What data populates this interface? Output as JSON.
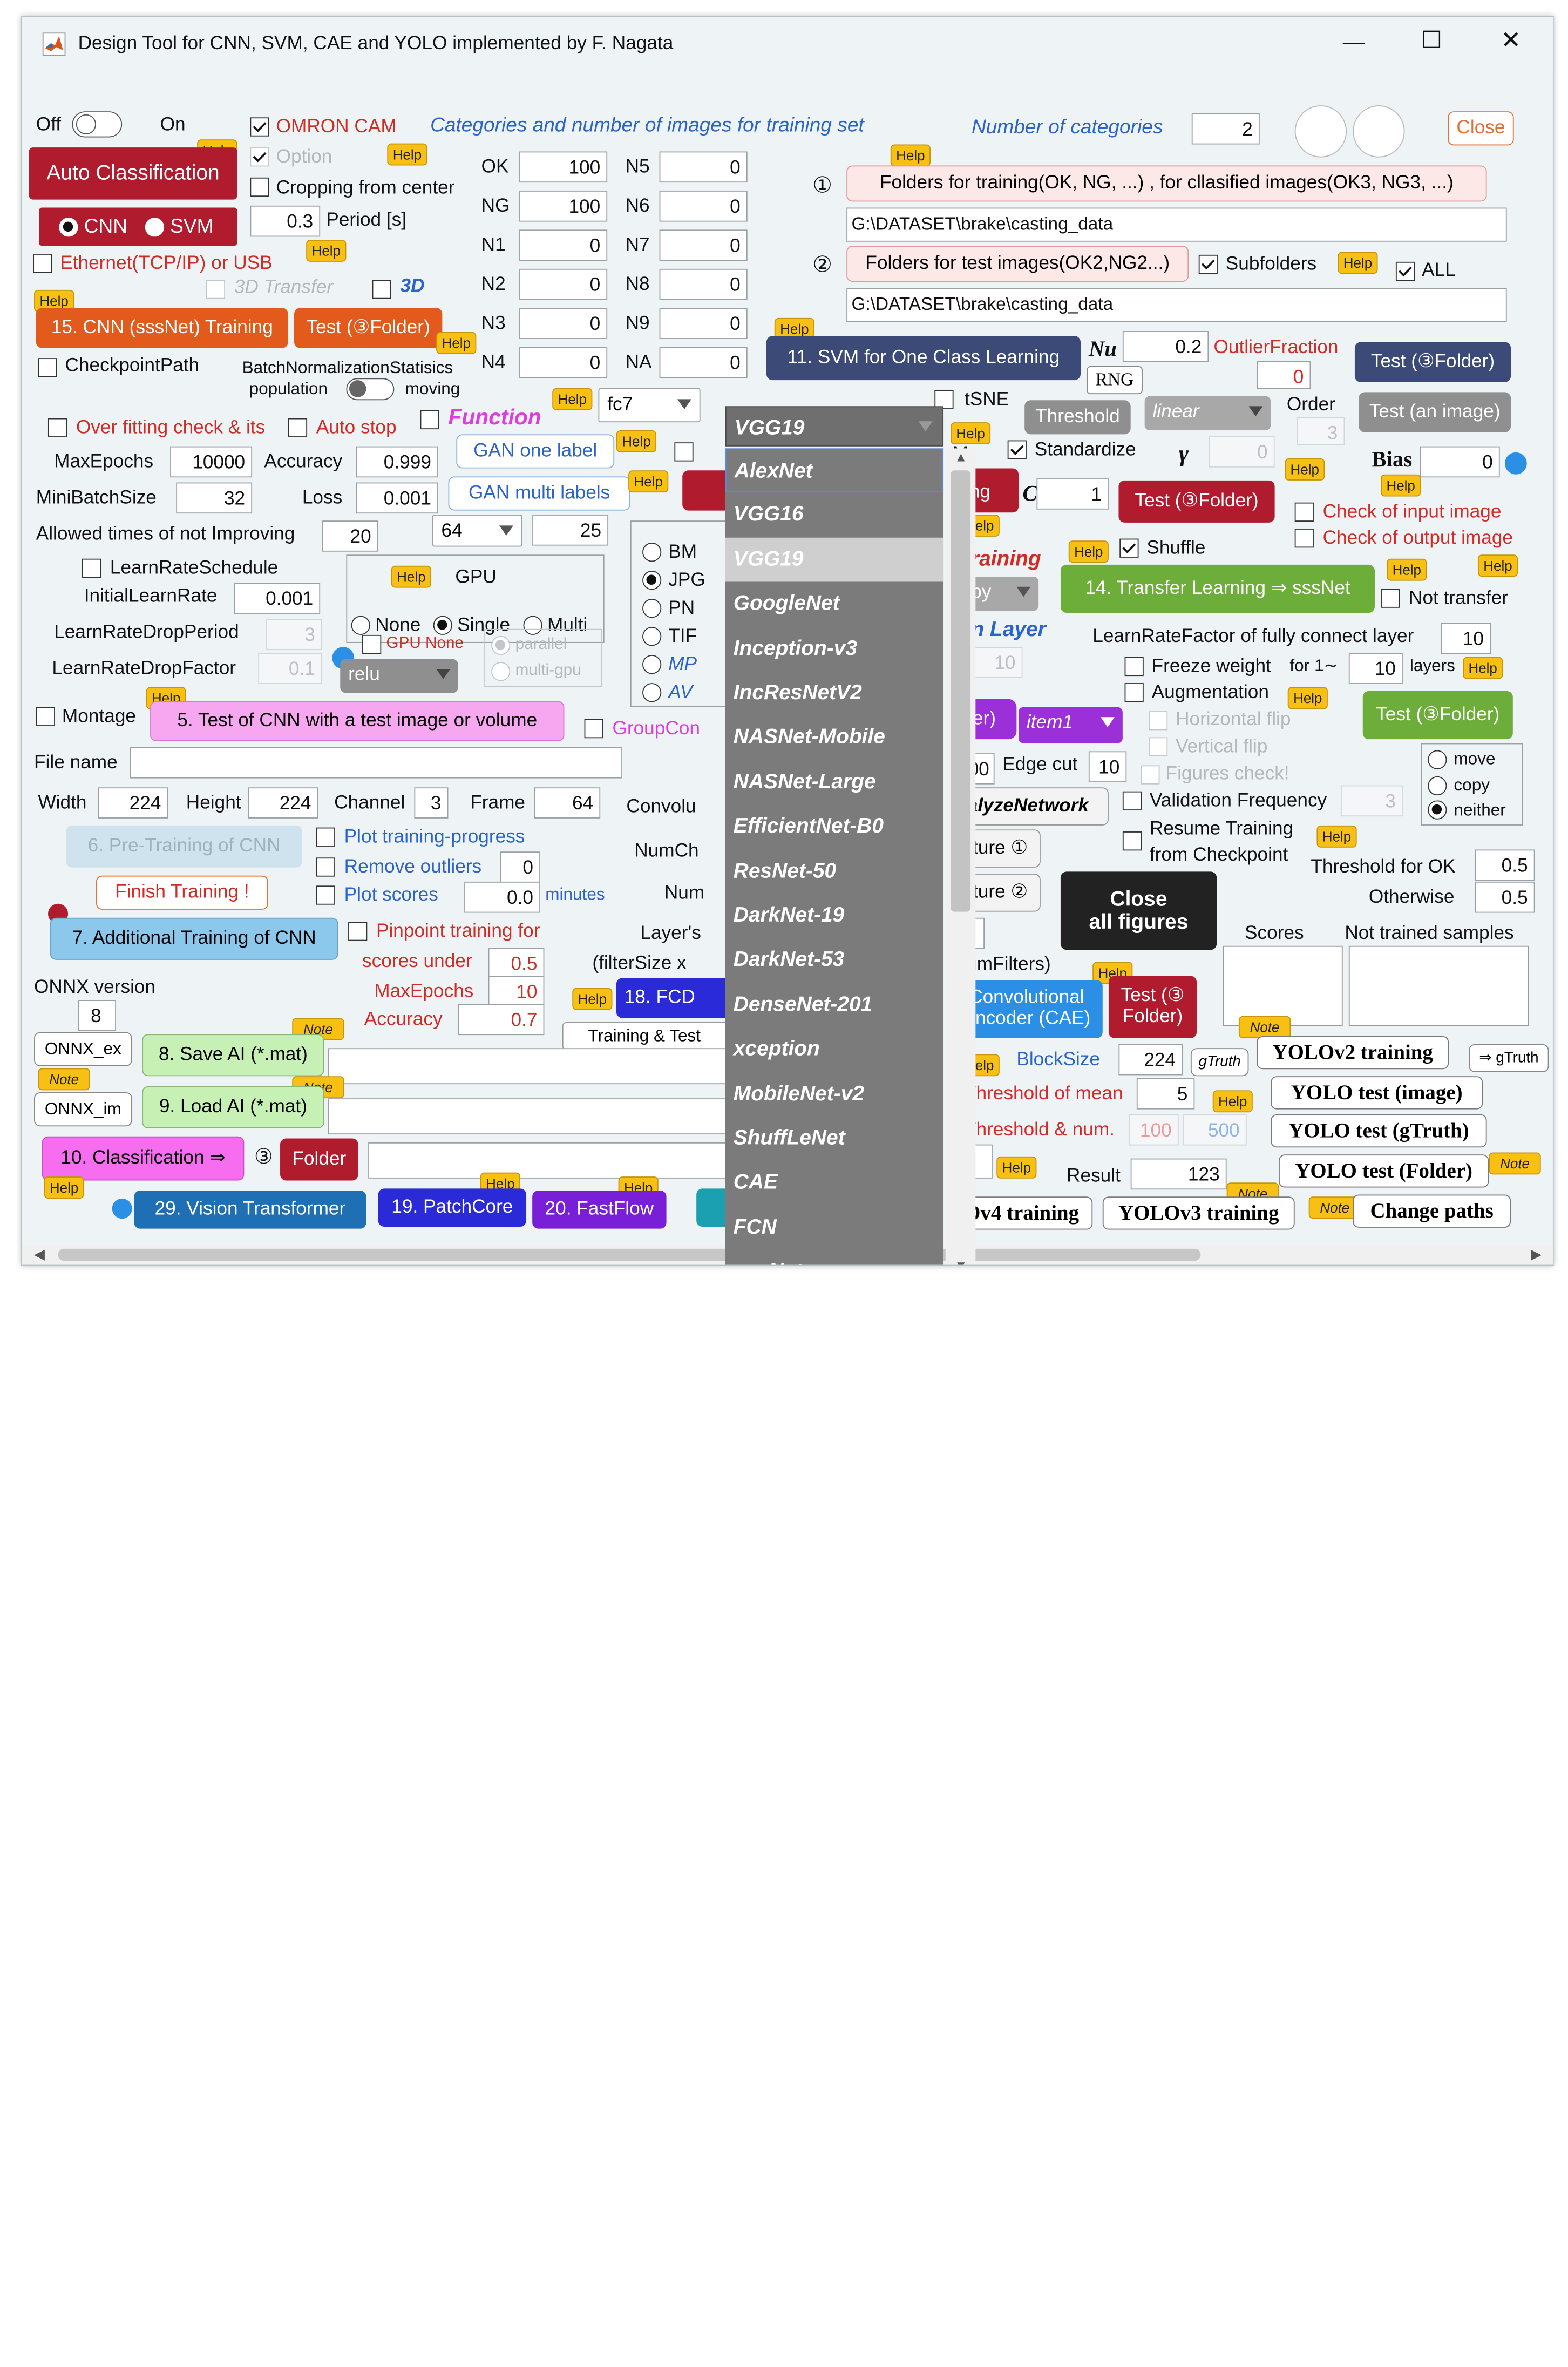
{
  "window": {
    "title": "Design Tool for CNN, SVM, CAE and YOLO implemented by F. Nagata",
    "minimize": "—",
    "maximize": "☐",
    "close": "✕"
  },
  "top": {
    "off": "Off",
    "on": "On",
    "omron_cam": "OMRON CAM",
    "option": "Option",
    "cropping": "Cropping from center",
    "period_value": "0.3",
    "period_label": "Period [s]",
    "ethernet": "Ethernet(TCP/IP) or USB",
    "transfer3d": "3D Transfer",
    "three_d": "3D",
    "categories_title": "Categories and number of images for training set",
    "num_categories_label": "Number of categories",
    "num_categories_value": "2",
    "close": "Close"
  },
  "help": "Help",
  "note": "Note",
  "auto_classification": "Auto Classification",
  "cnn": "CNN",
  "svm": "SVM",
  "categories": [
    {
      "name": "OK",
      "value": "100"
    },
    {
      "name": "NG",
      "value": "100"
    },
    {
      "name": "N1",
      "value": "0"
    },
    {
      "name": "N2",
      "value": "0"
    },
    {
      "name": "N3",
      "value": "0"
    },
    {
      "name": "N4",
      "value": "0"
    },
    {
      "name": "N5",
      "value": "0"
    },
    {
      "name": "N6",
      "value": "0"
    },
    {
      "name": "N7",
      "value": "0"
    },
    {
      "name": "N8",
      "value": "0"
    },
    {
      "name": "N9",
      "value": "0"
    },
    {
      "name": "NA",
      "value": "0"
    }
  ],
  "folders": {
    "circ1": "①",
    "circ2": "②",
    "training_label": "Folders for training(OK, NG, ...) , for cllasified images(OK3, NG3, ...)",
    "training_path": "G:\\DATASET\\brake\\casting_data",
    "test_label": "Folders for test images(OK2,NG2...)",
    "subfolders": "Subfolders",
    "all": "ALL",
    "test_path": "G:\\DATASET\\brake\\casting_data"
  },
  "cnn_panel": {
    "train15": "15. CNN (sssNet) Training",
    "test_folder": "Test (③Folder)",
    "checkpoint": "CheckpointPath",
    "bn_stats": "BatchNormalizationStatisics",
    "population": "population",
    "moving": "moving",
    "overfit": "Over fitting check & its",
    "autostop": "Auto stop",
    "function": "Function",
    "fc_layer": "fc7",
    "gan_one": "GAN  one label",
    "gan_multi": "GAN multi labels",
    "maxepochs_label": "MaxEpochs",
    "maxepochs": "10000",
    "accuracy_label": "Accuracy",
    "accuracy": "0.999",
    "minibatch_label": "MiniBatchSize",
    "minibatch": "32",
    "loss_label": "Loss",
    "loss": "0.001",
    "allowed_label": "Allowed times of not Improving",
    "allowed": "20",
    "sel64": "64",
    "val25": "25",
    "lrschedule": "LearnRateSchedule",
    "gpu": "GPU",
    "initlr_label": "InitialLearnRate",
    "initlr": "0.001",
    "none": "None",
    "single": "Single",
    "multi": "Multi",
    "lrdrop_label": "LearnRateDropPeriod",
    "lrdrop": "3",
    "gpu_none": "GPU None",
    "parallel": "parallel",
    "multigpu": "multi-gpu",
    "lrfactor_label": "LearnRateDropFactor",
    "lrfactor": "0.1",
    "relu": "relu",
    "montage": "Montage",
    "test5": "5. Test of CNN with a test image or volume",
    "groupcon": "GroupCon",
    "filename": "File name",
    "width_label": "Width",
    "width": "224",
    "height_label": "Height",
    "height": "224",
    "channel_label": "Channel",
    "channel": "3",
    "frame_label": "Frame",
    "frame": "64",
    "convolu": "Convolu",
    "numch": "NumCh",
    "num": "Num",
    "pretrain6": "6. Pre-Training of CNN",
    "plot_progress": "Plot training-progress",
    "remove_outliers": "Remove outliers",
    "remove_val": "0",
    "finish": "Finish Training !",
    "plot_scores": "Plot scores",
    "minutes_val": "0.0",
    "minutes": "minutes",
    "additional7": "7. Additional Training of CNN",
    "pinpoint": "Pinpoint training for",
    "scores_under": "scores under",
    "scores_val": "0.5",
    "layers": "Layer's",
    "filtersize": "(filterSize x",
    "onnx_version": "ONNX version",
    "onnx_val": "8",
    "maxep2_label": "MaxEpochs",
    "maxep2": "10",
    "acc2_label": "Accuracy",
    "acc2": "0.7",
    "fcd18": "18. FCD",
    "train_test": "Training & Test",
    "onnx_ex": "ONNX_ex",
    "save8": "8. Save AI (*.mat)",
    "onnx_im": "ONNX_im",
    "load9": "9. Load AI (*.mat)",
    "classify10": "10. Classification ⇒",
    "circ3": "③",
    "folder": "Folder",
    "vit29": "29. Vision Transformer",
    "patchcore19": "19. PatchCore",
    "fastflow20": "20. FastFlow",
    "formats": [
      "BM",
      "JPG",
      "PN",
      "TIF",
      "MP",
      "AV"
    ]
  },
  "model_menu": {
    "selected": "VGG19",
    "items": [
      "AlexNet",
      "VGG16",
      "VGG19",
      "GoogleNet",
      "Inception-v3",
      "IncResNetV2",
      "NASNet-Mobile",
      "NASNet-Large",
      "EfficientNet-B0",
      "ResNet-50",
      "DarkNet-19",
      "DarkNet-53",
      "DenseNet-201",
      "xception",
      "MobileNet-v2",
      "ShuffLeNet",
      "CAE",
      "FCN",
      "sssNet"
    ]
  },
  "svm_panel": {
    "tsne": "tSNE",
    "svm11": "11. SVM for One Class Learning",
    "nu_label": "Nu",
    "nu": "0.2",
    "rng": "RNG",
    "outlier_label": "OutlierFraction",
    "outlier": "0",
    "test_folder": "Test (③Folder)",
    "threshold": "Threshold",
    "kernel": "linear",
    "order_label": "Order",
    "order": "3",
    "test_image": "Test (an image)",
    "standardize": "Standardize",
    "gamma_label": "γ",
    "gamma": "0",
    "bias_label": "Bias",
    "bias": "0",
    "c_label": "C",
    "c": "1",
    "test_folder2": "Test (③Folder)",
    "check_input": "Check of input image",
    "check_output": "Check of output image",
    "m": "M",
    "ning": "ning"
  },
  "transfer": {
    "training": "Training",
    "shuffle": "Shuffle",
    "tl14": "14. Transfer Learning ⇒ sssNet",
    "not_transfer": "Not transfer",
    "copy": "opy",
    "ion_layer": "ion Layer",
    "e": "e",
    "e_val": "10",
    "lrfc_label": "LearnRateFactor of fully connect layer",
    "lrfc": "10",
    "freeze": "Freeze weight",
    "for1": "for 1∼",
    "freeze_val": "10",
    "layers": "layers",
    "augmentation": "Augmentation",
    "hflip": "Horizontal flip",
    "vflip": "Vertical flip",
    "figcheck": "Figures check!",
    "test_folder": "Test (③Folder)",
    "olfer": "olfer)",
    "item1": "item1",
    "val000": "000",
    "edgecut_label": "Edge cut",
    "edgecut": "10",
    "move": "move",
    "copy2": "copy",
    "neither": "neither",
    "analyze": "nalyzeNetwork",
    "validation": "Validation Frequency",
    "val_freq": "3",
    "resume": "Resume Training",
    "from_ckpt": "from Checkpoint",
    "thr_ok_label": "Threshold for OK",
    "thr_ok": "0.5",
    "otherwise_label": "Otherwise",
    "otherwise": "0.5",
    "feature1": "eature ①",
    "feature2": "eature ②",
    "close_figs": "Close\nall figures"
  },
  "cae": {
    "numfilters": "NumFilters)",
    "cae_btn": "Convolutional\nEncoder (CAE)",
    "test_folder": "Test (③\nFolder)",
    "scores": "Scores",
    "not_trained": "Not trained samples",
    "blocksize_label": "BlockSize",
    "blocksize": "224",
    "gtruth": "gTruth",
    "thr_mean_label": "Threshold of mean",
    "thr_mean": "5",
    "thr_num_label": "Threshold & num.",
    "thr_num1": "100",
    "thr_num2": "500",
    "result_label": "Result",
    "result": "123"
  },
  "yolo": {
    "v2": "YOLOv2 training",
    "to_gtruth": "⇒ gTruth",
    "test_image": "YOLO test (image)",
    "test_gtruth": "YOLO test (gTruth)",
    "test_folder": "YOLO test (Folder)",
    "v4": "Ov4 training",
    "v3": "YOLOv3 training",
    "change": "Change paths"
  }
}
